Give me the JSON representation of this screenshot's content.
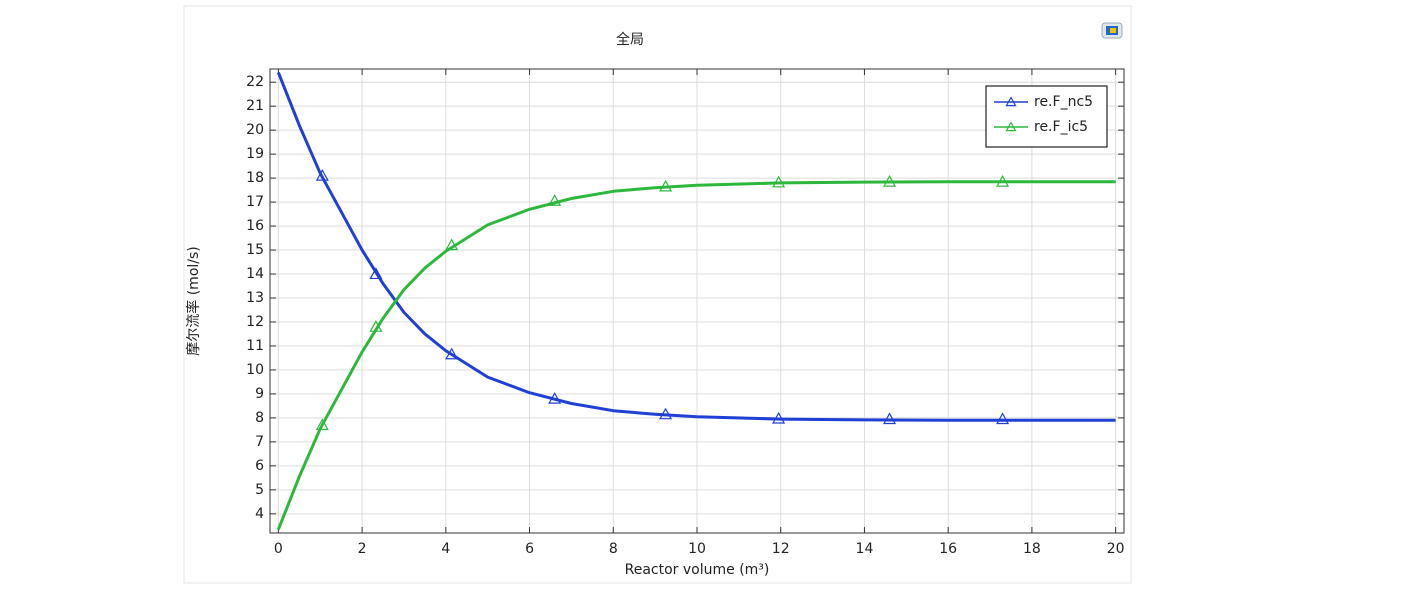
{
  "chart_data": {
    "type": "line",
    "title": "全局",
    "x_label": "Reactor volume (m³)",
    "y_label": "摩尔流率 (mol/s)",
    "x": [
      0,
      0.5,
      1,
      1.5,
      2,
      2.5,
      3,
      3.5,
      4,
      5,
      6,
      7,
      8,
      9,
      10,
      12,
      14,
      16,
      18,
      20
    ],
    "series": [
      {
        "name": "re.F_nc5",
        "color": "#1f3fd6",
        "values": [
          22.4,
          20.2,
          18.2,
          16.6,
          15.0,
          13.6,
          12.4,
          11.5,
          10.8,
          9.7,
          9.05,
          8.6,
          8.3,
          8.15,
          8.05,
          7.95,
          7.92,
          7.9,
          7.9,
          7.9
        ],
        "markers": {
          "x": [
            1.05,
            2.33,
            4.14,
            6.6,
            9.25,
            11.95,
            14.6,
            17.3
          ],
          "values": [
            18.1,
            14.0,
            10.65,
            8.8,
            8.15,
            7.97,
            7.95,
            7.95
          ]
        }
      },
      {
        "name": "re.F_ic5",
        "color": "#2db83d",
        "values": [
          3.35,
          5.55,
          7.55,
          9.15,
          10.75,
          12.15,
          13.35,
          14.25,
          14.95,
          16.05,
          16.7,
          17.15,
          17.45,
          17.6,
          17.7,
          17.8,
          17.83,
          17.85,
          17.85,
          17.85
        ],
        "markers": {
          "x": [
            1.05,
            2.33,
            4.14,
            6.6,
            9.25,
            11.95,
            14.6,
            17.3
          ],
          "values": [
            7.7,
            11.8,
            15.2,
            17.05,
            17.65,
            17.82,
            17.85,
            17.85
          ]
        }
      }
    ],
    "xlim": [
      -0.2,
      20.2
    ],
    "ylim": [
      3.2,
      22.55
    ],
    "xticks": [
      0,
      2,
      4,
      6,
      8,
      10,
      12,
      14,
      16,
      18,
      20
    ],
    "yticks": [
      4,
      5,
      6,
      7,
      8,
      9,
      10,
      11,
      12,
      13,
      14,
      15,
      16,
      17,
      18,
      19,
      20,
      21,
      22
    ],
    "grid": true,
    "legend": "upper right"
  }
}
